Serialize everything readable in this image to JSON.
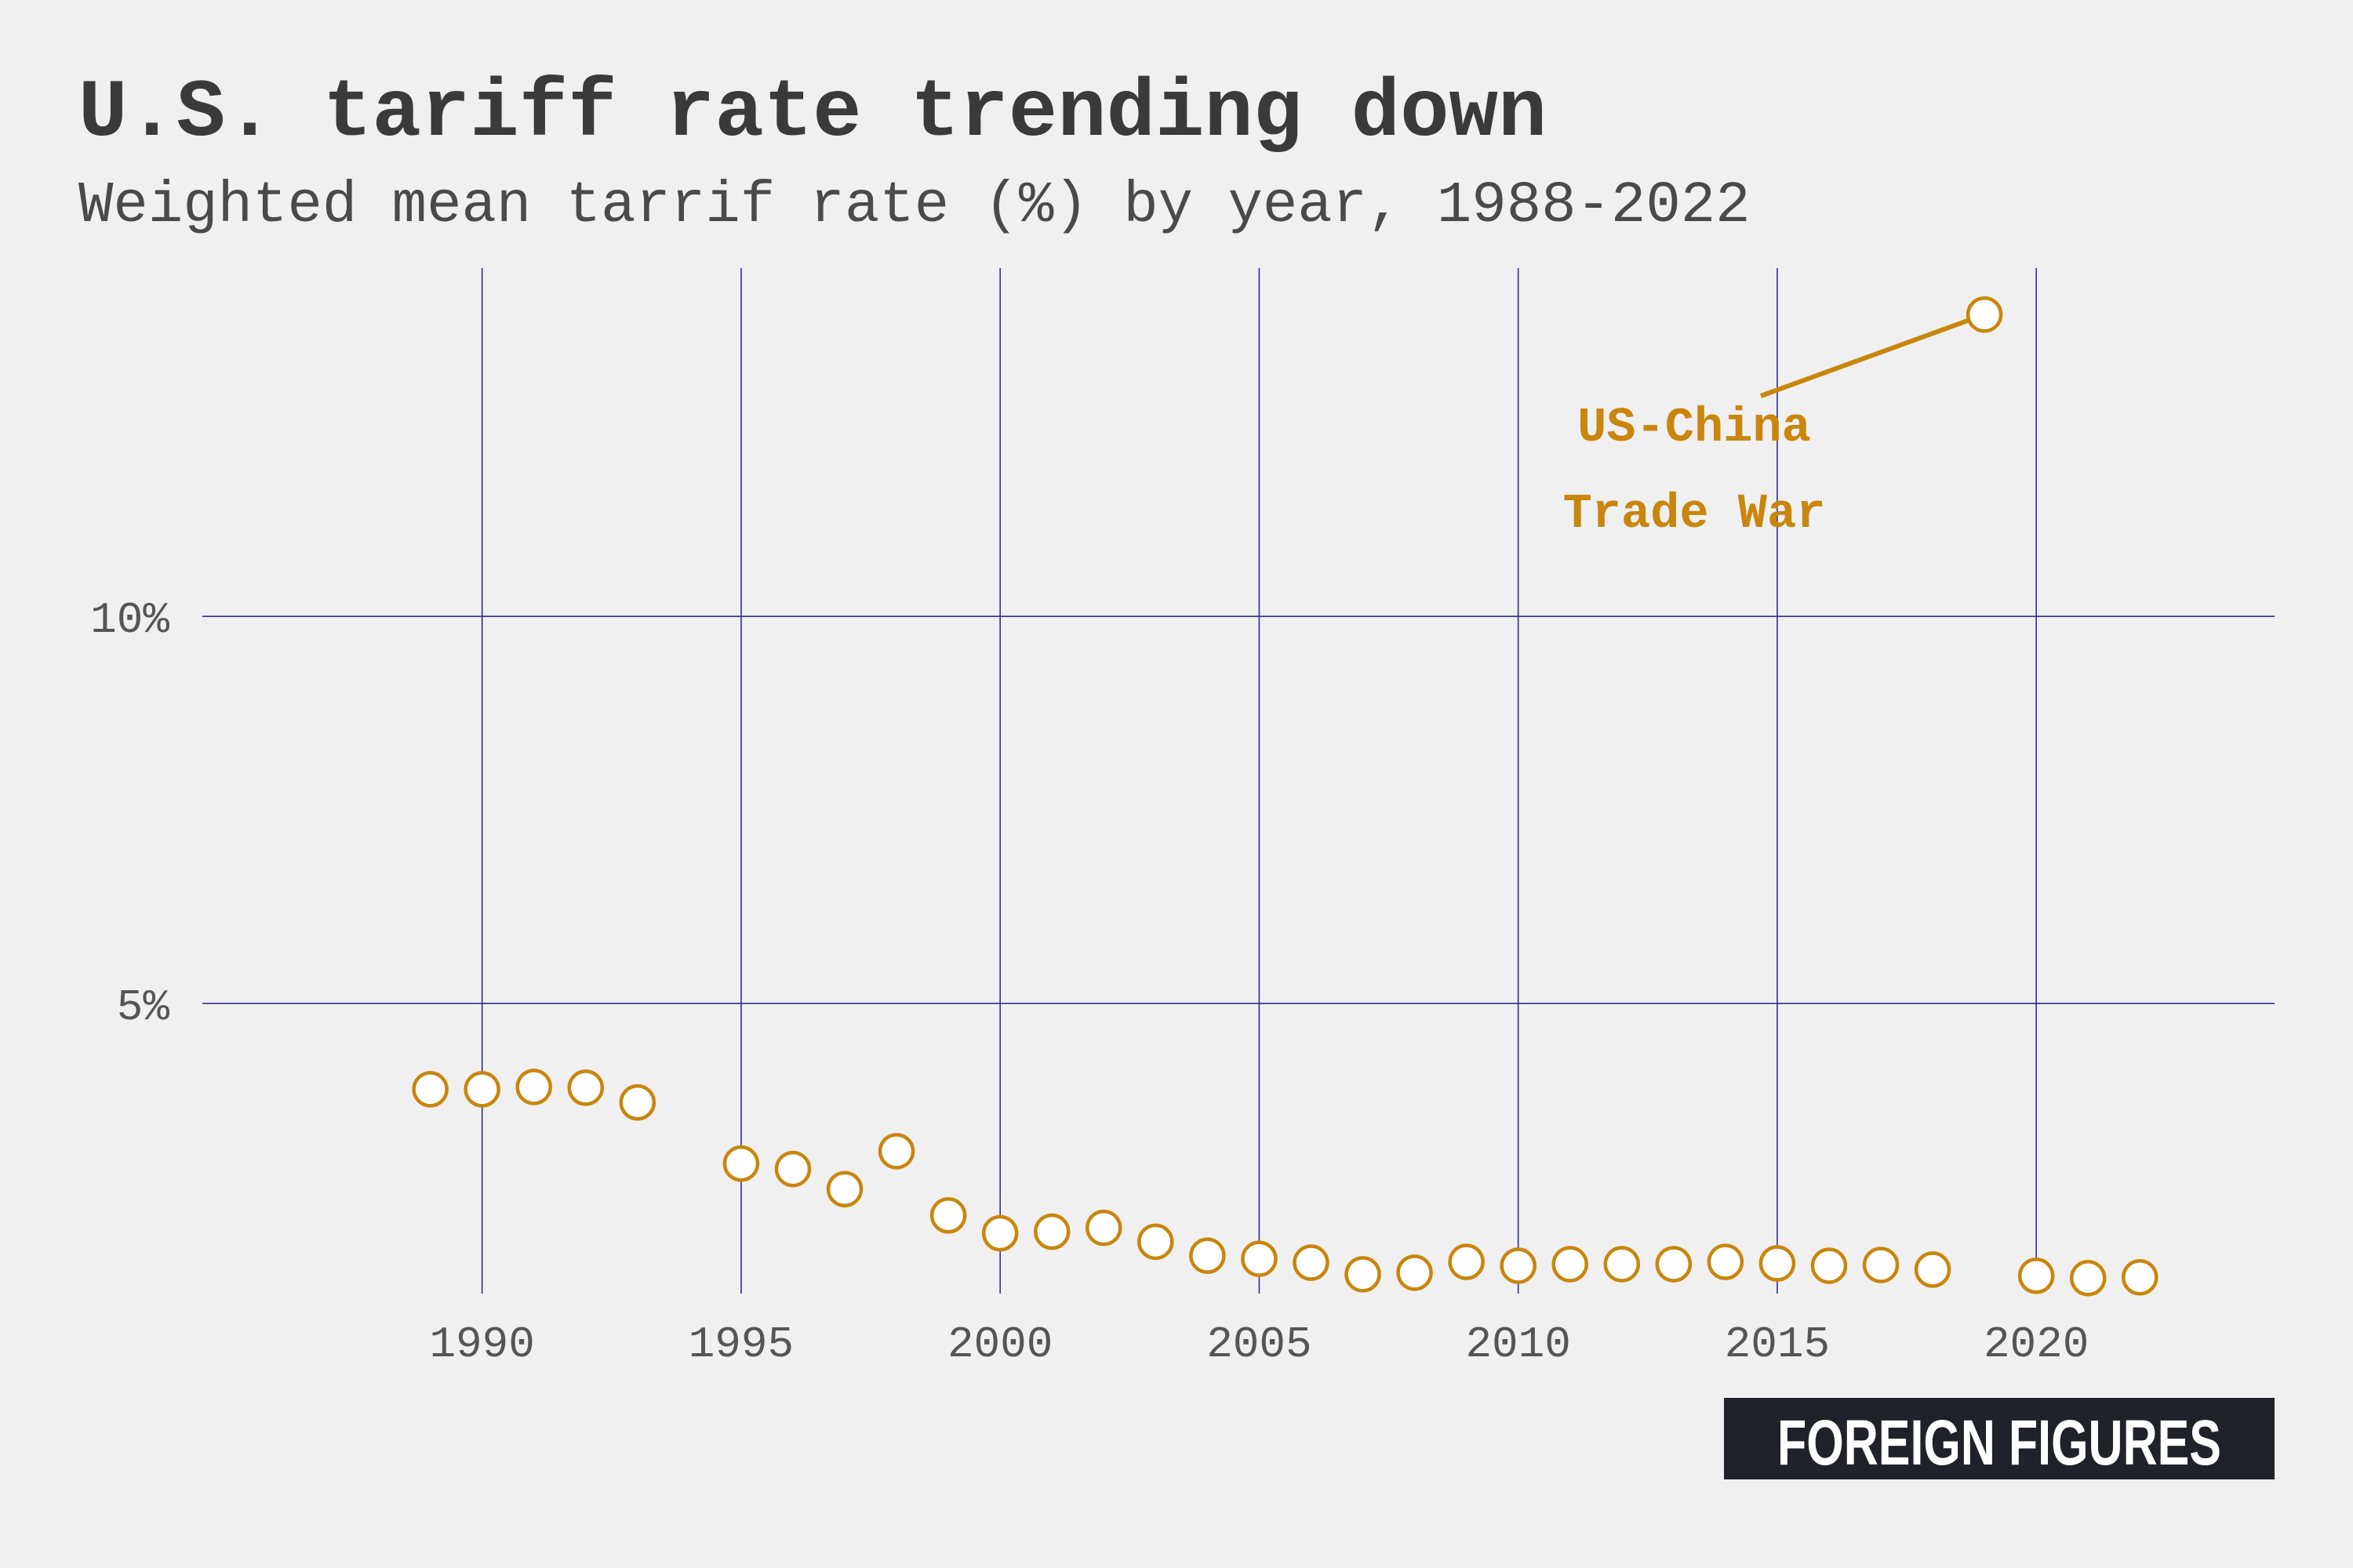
{
  "chart_data": {
    "type": "scatter",
    "title": "U.S. tariff rate trending down",
    "subtitle": "Weighted mean tarrif rate (%) by year, 1988-2022",
    "xlabel": "",
    "ylabel": "",
    "xlim": [
      1984.6,
      2024.6
    ],
    "ylim": [
      1.25,
      14.5
    ],
    "x_ticks": [
      1990,
      1995,
      2000,
      2005,
      2010,
      2015,
      2020
    ],
    "x_tick_labels": [
      "1990",
      "1995",
      "2000",
      "2005",
      "2010",
      "2015",
      "2020"
    ],
    "y_ticks": [
      5,
      10
    ],
    "y_tick_labels": [
      "5%",
      "10%"
    ],
    "grid": true,
    "series": [
      {
        "color": "#c8860d",
        "points": [
          {
            "x": 1989,
            "y": 3.89
          },
          {
            "x": 1990,
            "y": 3.89
          },
          {
            "x": 1991,
            "y": 3.92
          },
          {
            "x": 1992,
            "y": 3.91
          },
          {
            "x": 1993,
            "y": 3.72
          },
          {
            "x": 1995,
            "y": 2.93
          },
          {
            "x": 1996,
            "y": 2.86
          },
          {
            "x": 1997,
            "y": 2.6
          },
          {
            "x": 1998,
            "y": 3.09
          },
          {
            "x": 1999,
            "y": 2.26
          },
          {
            "x": 2000,
            "y": 2.03
          },
          {
            "x": 2001,
            "y": 2.05
          },
          {
            "x": 2002,
            "y": 2.1
          },
          {
            "x": 2003,
            "y": 1.92
          },
          {
            "x": 2004,
            "y": 1.74
          },
          {
            "x": 2005,
            "y": 1.7
          },
          {
            "x": 2006,
            "y": 1.65
          },
          {
            "x": 2007,
            "y": 1.5
          },
          {
            "x": 2008,
            "y": 1.52
          },
          {
            "x": 2009,
            "y": 1.66
          },
          {
            "x": 2010,
            "y": 1.61
          },
          {
            "x": 2011,
            "y": 1.63
          },
          {
            "x": 2012,
            "y": 1.63
          },
          {
            "x": 2013,
            "y": 1.63
          },
          {
            "x": 2014,
            "y": 1.66
          },
          {
            "x": 2015,
            "y": 1.64
          },
          {
            "x": 2016,
            "y": 1.61
          },
          {
            "x": 2017,
            "y": 1.62
          },
          {
            "x": 2018,
            "y": 1.56
          },
          {
            "x": 2019,
            "y": 13.9
          },
          {
            "x": 2020,
            "y": 1.48
          },
          {
            "x": 2021,
            "y": 1.45
          },
          {
            "x": 2022,
            "y": 1.46
          }
        ]
      }
    ],
    "annotation": {
      "lines": [
        "US-China",
        "Trade War"
      ],
      "target_x": 2019,
      "target_y": 13.9,
      "color": "#c8860d"
    }
  },
  "brand": {
    "text": "FOREIGN FIGURES",
    "background": "#1f2229"
  },
  "colors": {
    "background": "#f0f0f0",
    "grid": "#2f2f8f",
    "point": "#c8860d"
  }
}
